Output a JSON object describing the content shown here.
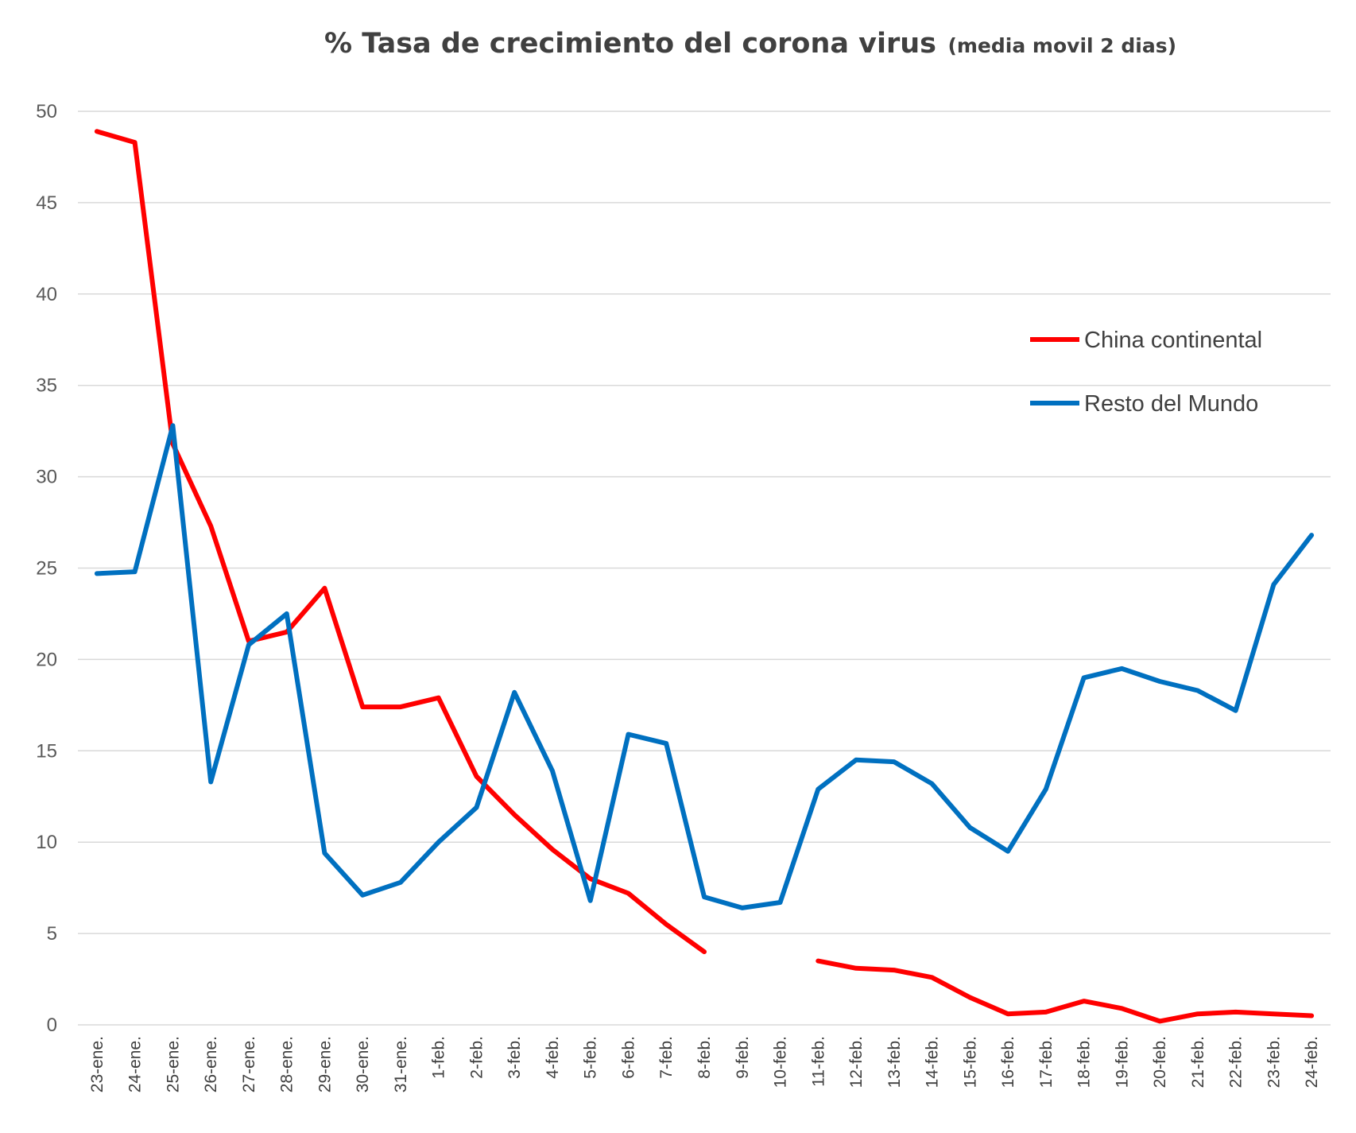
{
  "chart_data": {
    "type": "line",
    "title": "% Tasa de crecimiento del corona virus",
    "subtitle": "(media movil 2 dias)",
    "xlabel": "",
    "ylabel": "",
    "ylim": [
      0,
      50
    ],
    "yticks": [
      0,
      5,
      10,
      15,
      20,
      25,
      30,
      35,
      40,
      45,
      50
    ],
    "grid": true,
    "legend_position": "right",
    "categories": [
      "23-ene.",
      "24-ene.",
      "25-ene.",
      "26-ene.",
      "27-ene.",
      "28-ene.",
      "29-ene.",
      "30-ene.",
      "31-ene.",
      "1-feb.",
      "2-feb.",
      "3-feb.",
      "4-feb.",
      "5-feb.",
      "6-feb.",
      "7-feb.",
      "8-feb.",
      "9-feb.",
      "10-feb.",
      "11-feb.",
      "12-feb.",
      "13-feb.",
      "14-feb.",
      "15-feb.",
      "16-feb.",
      "17-feb.",
      "18-feb.",
      "19-feb.",
      "20-feb.",
      "21-feb.",
      "22-feb.",
      "23-feb.",
      "24-feb."
    ],
    "series": [
      {
        "name": "China continental",
        "color": "#ff0000",
        "values": [
          48.9,
          48.3,
          31.8,
          27.3,
          21.0,
          21.5,
          23.9,
          17.4,
          17.4,
          17.9,
          13.6,
          11.5,
          9.6,
          8.0,
          7.2,
          5.5,
          4.0,
          null,
          null,
          3.5,
          3.1,
          3.0,
          2.6,
          1.5,
          0.6,
          0.7,
          1.3,
          0.9,
          0.2,
          0.6,
          0.7,
          0.6,
          0.5
        ]
      },
      {
        "name": "Resto del Mundo",
        "color": "#0070c0",
        "values": [
          24.7,
          24.8,
          32.8,
          13.3,
          20.8,
          22.5,
          9.4,
          7.1,
          7.8,
          10.0,
          11.9,
          18.2,
          13.9,
          6.8,
          15.9,
          15.4,
          7.0,
          6.4,
          6.7,
          12.9,
          14.5,
          14.4,
          13.2,
          10.8,
          9.5,
          12.9,
          19.0,
          19.5,
          18.8,
          18.3,
          17.2,
          24.1,
          26.8
        ]
      }
    ]
  }
}
